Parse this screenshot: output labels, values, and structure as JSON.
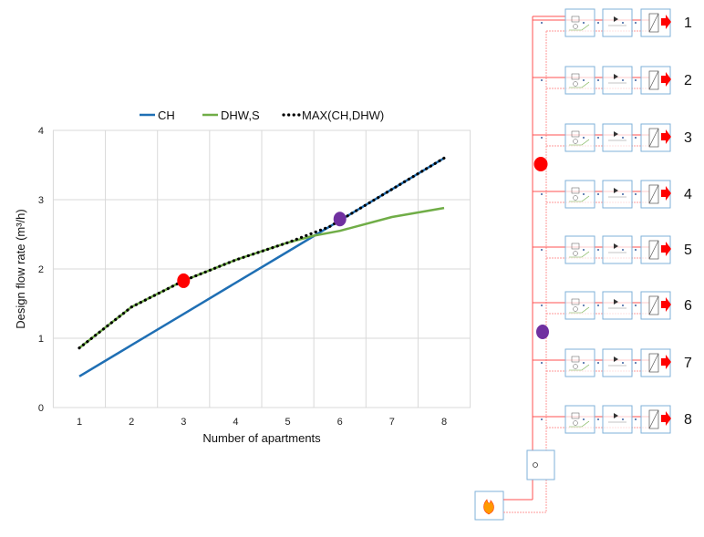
{
  "chart_data": {
    "type": "line",
    "title": "",
    "xlabel": "Number of apartments",
    "ylabel": "Design flow rate (m³/h)",
    "xlim": [
      1,
      8
    ],
    "ylim": [
      0,
      4
    ],
    "xticks": [
      "1",
      "2",
      "3",
      "4",
      "5",
      "6",
      "7",
      "8"
    ],
    "yticks": [
      "0",
      "1",
      "2",
      "3",
      "4"
    ],
    "grid": true,
    "legend_position": "top",
    "series": [
      {
        "name": "CH",
        "color": "#1f6fb4",
        "style": "solid",
        "x": [
          1,
          2,
          3,
          4,
          5,
          6,
          7,
          8
        ],
        "y": [
          0.45,
          0.9,
          1.35,
          1.8,
          2.25,
          2.7,
          3.15,
          3.6
        ]
      },
      {
        "name": "DHW,S",
        "color": "#70ad47",
        "style": "solid",
        "x": [
          1,
          2,
          3,
          4,
          5,
          5.5,
          6,
          7,
          8
        ],
        "y": [
          0.86,
          1.45,
          1.83,
          2.13,
          2.38,
          2.48,
          2.55,
          2.75,
          2.88
        ]
      },
      {
        "name": "MAX(CH,DHW)",
        "color": "#000000",
        "style": "dotted",
        "x": [
          1,
          2,
          3,
          4,
          5,
          5.8,
          6,
          7,
          8
        ],
        "y": [
          0.86,
          1.45,
          1.83,
          2.13,
          2.38,
          2.61,
          2.7,
          3.15,
          3.6
        ]
      }
    ],
    "markers": [
      {
        "x": 3,
        "y": 1.83,
        "color": "#ff0000"
      },
      {
        "x": 6,
        "y": 2.72,
        "color": "#7030a0"
      }
    ]
  },
  "diagram": {
    "apartment_labels": [
      "1",
      "2",
      "3",
      "4",
      "5",
      "6",
      "7",
      "8"
    ],
    "riser_markers": [
      {
        "color": "#ff0000"
      },
      {
        "color": "#7030a0"
      }
    ],
    "colors": {
      "supply": "#ff5050",
      "return": "#ff9999",
      "box": "#7fb2d9",
      "riser": "#3a5fa0"
    }
  }
}
